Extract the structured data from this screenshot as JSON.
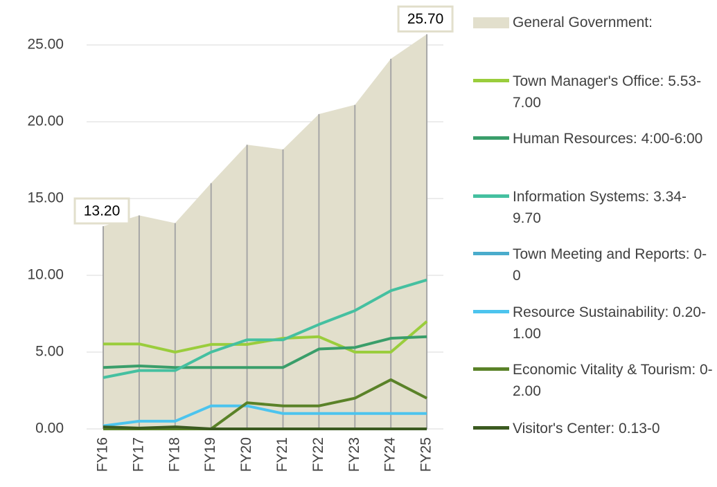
{
  "chart_data": {
    "type": "line",
    "categories": [
      "FY16",
      "FY17",
      "FY18",
      "FY19",
      "FY20",
      "FY21",
      "FY22",
      "FY23",
      "FY24",
      "FY25"
    ],
    "ylim": [
      0,
      27.5
    ],
    "yticks": [
      {
        "value": 0,
        "label": "0.00"
      },
      {
        "value": 5,
        "label": "5.00"
      },
      {
        "value": 10,
        "label": "10.00"
      },
      {
        "value": 15,
        "label": "15.00"
      },
      {
        "value": 20,
        "label": "20.00"
      },
      {
        "value": 25,
        "label": "25.00"
      }
    ],
    "grid": true,
    "legend": "right",
    "series": [
      {
        "name": "General Government:",
        "color": "#e2dfcc",
        "area": true,
        "values": [
          13.2,
          13.9,
          13.4,
          16.0,
          18.5,
          18.2,
          20.5,
          21.1,
          24.1,
          25.7
        ],
        "value_labels": [
          "13.20",
          null,
          null,
          null,
          null,
          null,
          null,
          null,
          null,
          "25.70"
        ]
      },
      {
        "name": "Town Manager's Office: 5.53-7.00",
        "color": "#9acd3c",
        "values": [
          5.53,
          5.53,
          5.0,
          5.5,
          5.5,
          5.9,
          6.0,
          5.0,
          5.0,
          7.0
        ]
      },
      {
        "name": "Human Resources: 4:00-6:00",
        "color": "#3a9e6a",
        "values": [
          4.0,
          4.1,
          4.0,
          4.0,
          4.0,
          4.0,
          5.2,
          5.3,
          5.9,
          6.0
        ]
      },
      {
        "name": "Information Systems: 3.34-9.70",
        "color": "#45c0a0",
        "values": [
          3.34,
          3.8,
          3.8,
          5.0,
          5.8,
          5.8,
          6.8,
          7.7,
          9.0,
          9.7
        ]
      },
      {
        "name": "Town Meeting and Reports: 0-0",
        "color": "#4aaccc",
        "values": [
          0,
          0,
          0,
          0,
          0,
          0,
          0,
          0,
          0,
          0
        ]
      },
      {
        "name": "Resource Sustainability: 0.20-1.00",
        "color": "#4cc4ee",
        "values": [
          0.2,
          0.5,
          0.5,
          1.5,
          1.5,
          1.0,
          1.0,
          1.0,
          1.0,
          1.0
        ]
      },
      {
        "name": "Economic Vitality & Tourism: 0-2.00",
        "color": "#5a8228",
        "values": [
          0,
          0,
          0,
          0,
          1.7,
          1.5,
          1.5,
          2.0,
          3.2,
          2.0
        ]
      },
      {
        "name": "Visitor's Center: 0.13-0",
        "color": "#3b5a20",
        "values": [
          0.13,
          0.05,
          0.13,
          0,
          0,
          0,
          0,
          0,
          0,
          0
        ]
      }
    ]
  }
}
